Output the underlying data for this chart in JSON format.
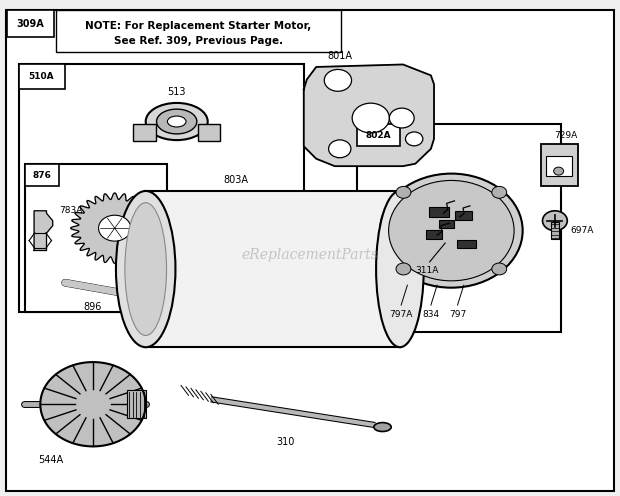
{
  "bg_color": "#f0f0f0",
  "border_color": "#000000",
  "watermark": "eReplacementParts",
  "note_line1": "NOTE: For Replacement Starter Motor,",
  "note_line2": "See Ref. 309, Previous Page."
}
